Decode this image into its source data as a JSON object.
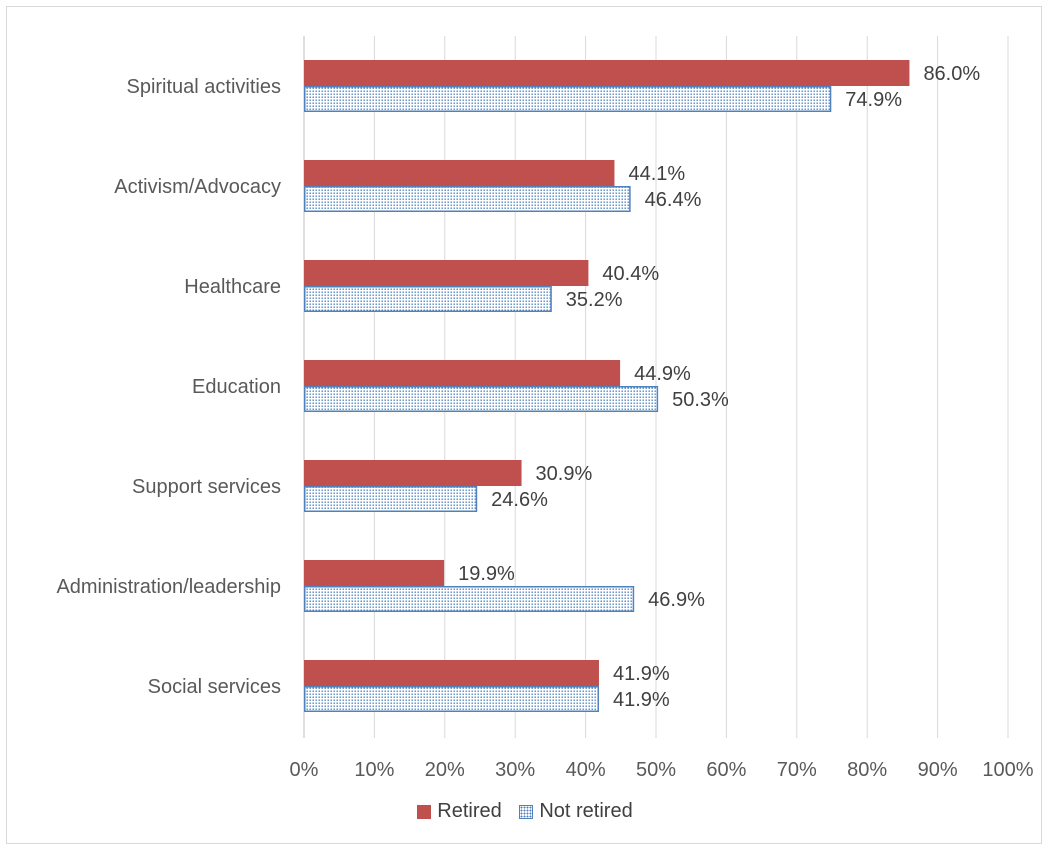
{
  "chart_data": {
    "type": "bar",
    "orientation": "horizontal",
    "categories": [
      "Spiritual activities",
      "Activism/Advocacy",
      "Healthcare",
      "Education",
      "Support services",
      "Administration/leadership",
      "Social services"
    ],
    "series": [
      {
        "name": "Retired",
        "values": [
          86.0,
          44.1,
          40.4,
          44.9,
          30.9,
          19.9,
          41.9
        ],
        "labels": [
          "86.0%",
          "44.1%",
          "40.4%",
          "44.9%",
          "30.9%",
          "19.9%",
          "41.9%"
        ],
        "color": "#c0504d",
        "fill": "solid"
      },
      {
        "name": "Not retired",
        "values": [
          74.9,
          46.4,
          35.2,
          50.3,
          24.6,
          46.9,
          41.9
        ],
        "labels": [
          "74.9%",
          "46.4%",
          "35.2%",
          "50.3%",
          "24.6%",
          "46.9%",
          "41.9%"
        ],
        "color": "#4f81bd",
        "fill": "dotted"
      }
    ],
    "xlim": [
      0,
      100
    ],
    "xticks": [
      "0%",
      "10%",
      "20%",
      "30%",
      "40%",
      "50%",
      "60%",
      "70%",
      "80%",
      "90%",
      "100%"
    ],
    "grid": true,
    "legend_position": "bottom"
  }
}
